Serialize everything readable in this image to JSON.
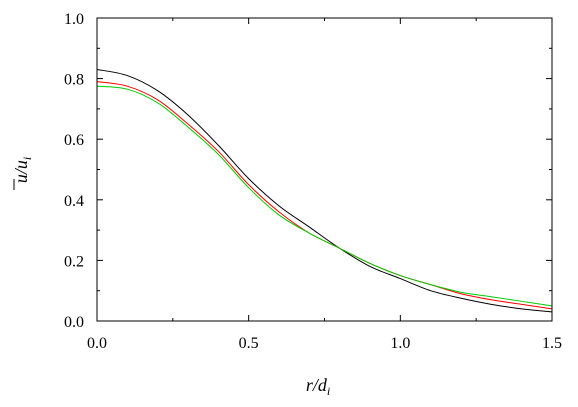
{
  "chart_data": {
    "type": "line",
    "title": "",
    "xlabel": {
      "main": "r/d",
      "sub": "i"
    },
    "ylabel": {
      "main": "u/u",
      "sub": "i"
    },
    "xlim": [
      0,
      1.5
    ],
    "ylim": [
      0,
      1.0
    ],
    "xticks": [
      0.0,
      0.5,
      1.0,
      1.5
    ],
    "xtick_labels": [
      "0.0",
      "0.5",
      "1.0",
      "1.5"
    ],
    "yticks": [
      0.0,
      0.2,
      0.4,
      0.6,
      0.8,
      1.0
    ],
    "ytick_labels": [
      "0.0",
      "0.2",
      "0.4",
      "0.6",
      "0.8",
      "1.0"
    ],
    "grid": false,
    "legend": "none",
    "series": [
      {
        "color": "#000000",
        "x": [
          0,
          0.1,
          0.2,
          0.3,
          0.4,
          0.5,
          0.6,
          0.7,
          0.8,
          0.9,
          1.0,
          1.1,
          1.2,
          1.3,
          1.4,
          1.5
        ],
        "y": [
          0.83,
          0.81,
          0.76,
          0.68,
          0.58,
          0.47,
          0.38,
          0.31,
          0.24,
          0.18,
          0.14,
          0.1,
          0.075,
          0.055,
          0.04,
          0.03
        ]
      },
      {
        "color": "#ff0000",
        "x": [
          0,
          0.1,
          0.2,
          0.3,
          0.4,
          0.5,
          0.6,
          0.7,
          0.8,
          0.9,
          1.0,
          1.1,
          1.2,
          1.3,
          1.4,
          1.5
        ],
        "y": [
          0.79,
          0.775,
          0.73,
          0.65,
          0.56,
          0.45,
          0.36,
          0.29,
          0.24,
          0.19,
          0.15,
          0.12,
          0.09,
          0.07,
          0.055,
          0.04
        ]
      },
      {
        "color": "#00cc00",
        "x": [
          0,
          0.1,
          0.2,
          0.3,
          0.4,
          0.5,
          0.6,
          0.7,
          0.8,
          0.9,
          1.0,
          1.1,
          1.2,
          1.3,
          1.4,
          1.5
        ],
        "y": [
          0.775,
          0.765,
          0.72,
          0.64,
          0.55,
          0.44,
          0.35,
          0.29,
          0.24,
          0.19,
          0.15,
          0.12,
          0.095,
          0.08,
          0.065,
          0.05
        ]
      }
    ]
  }
}
